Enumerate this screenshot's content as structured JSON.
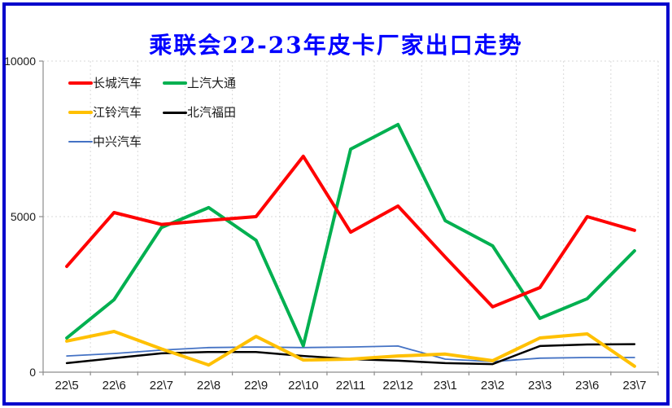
{
  "frame": {
    "border_color": "#0000CC",
    "background": "#FFFFFF"
  },
  "title": {
    "text": "乘联会22-23年皮卡厂家出口走势",
    "color": "#0000FF"
  },
  "axes": {
    "axis_color": "#8C8C8C",
    "gridline_color": "#D9D9D9",
    "y_tick_labels": [
      "0",
      "5000",
      "10000"
    ]
  },
  "chart_data": {
    "type": "line",
    "title": "乘联会22-23年皮卡厂家出口走势",
    "categories": [
      "22\\5",
      "22\\6",
      "22\\7",
      "22\\8",
      "22\\9",
      "22\\10",
      "22\\11",
      "22\\12",
      "23\\1",
      "23\\2",
      "23\\3",
      "23\\6",
      "23\\7"
    ],
    "series": [
      {
        "name": "长城汽车",
        "color": "#FF0000",
        "line_width": 4,
        "values": [
          3400,
          5130,
          4750,
          4880,
          5000,
          6940,
          4500,
          5340,
          3700,
          2100,
          2720,
          5000,
          4560
        ]
      },
      {
        "name": "上汽大通",
        "color": "#00B050",
        "line_width": 4,
        "values": [
          1100,
          2330,
          4650,
          5290,
          4240,
          850,
          7170,
          7960,
          4870,
          4060,
          1730,
          2360,
          3900
        ]
      },
      {
        "name": "江铃汽车",
        "color": "#FFC000",
        "line_width": 4,
        "values": [
          1000,
          1310,
          750,
          230,
          1150,
          390,
          420,
          520,
          580,
          370,
          1100,
          1230,
          190
        ]
      },
      {
        "name": "北汽福田",
        "color": "#000000",
        "line_width": 2.5,
        "values": [
          290,
          450,
          605,
          650,
          650,
          520,
          420,
          370,
          290,
          260,
          840,
          890,
          900
        ]
      },
      {
        "name": "中兴汽车",
        "color": "#4472C4",
        "line_width": 1.8,
        "values": [
          520,
          600,
          710,
          790,
          810,
          790,
          810,
          840,
          420,
          340,
          450,
          470,
          470
        ]
      }
    ],
    "ylim": [
      0,
      10000
    ],
    "y_ticks": [
      0,
      5000,
      10000
    ],
    "grid": true,
    "legend_position": "top-left"
  }
}
